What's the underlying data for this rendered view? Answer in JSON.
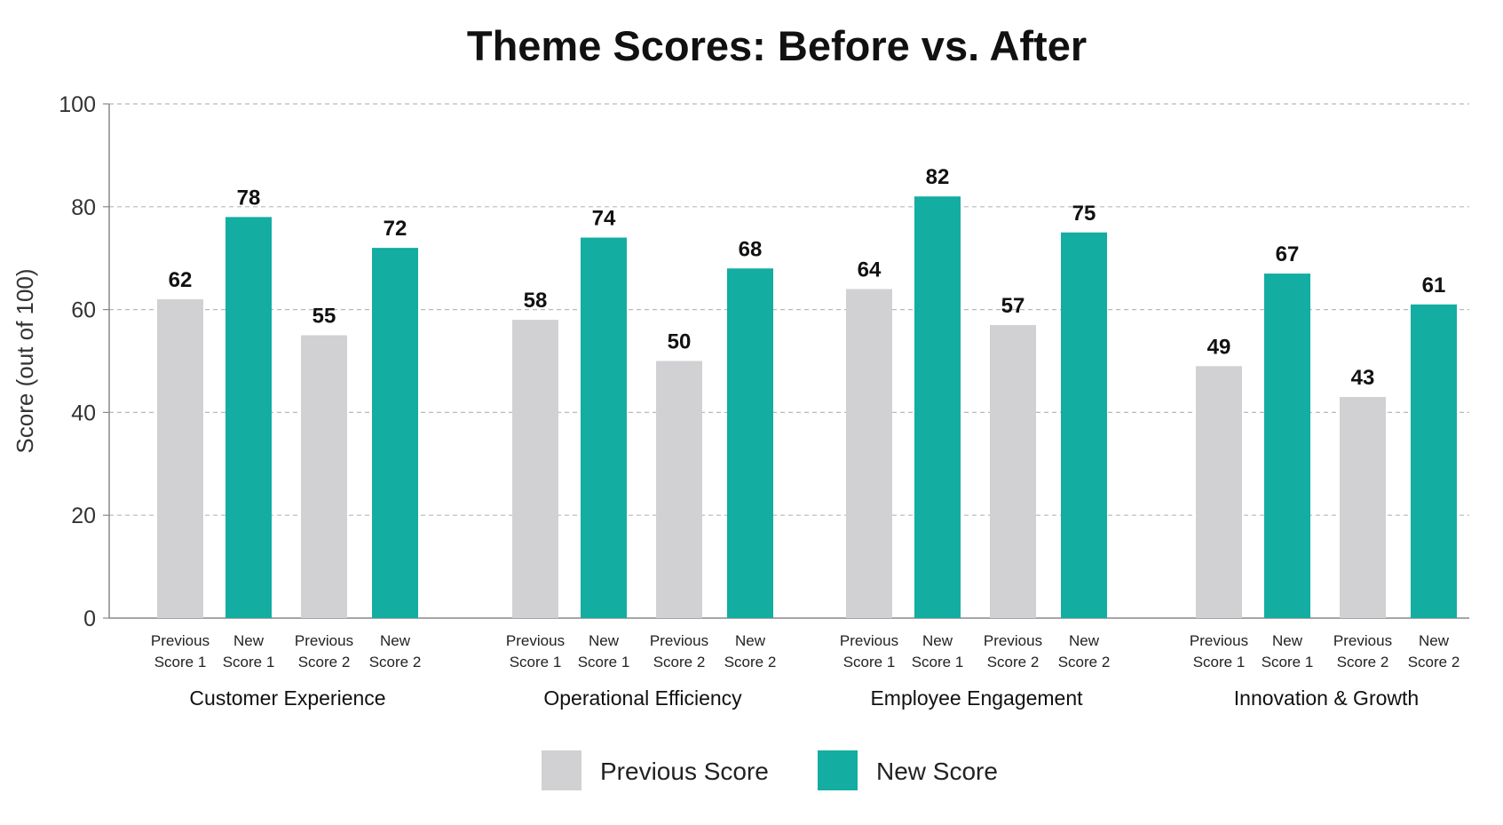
{
  "chart_data": {
    "type": "bar",
    "title": "Theme Scores: Before vs. After",
    "xlabel": "",
    "ylabel": "Score (out of 100)",
    "ylim": [
      0,
      100
    ],
    "yticks": [
      0,
      20,
      40,
      60,
      80,
      100
    ],
    "grid": true,
    "legend_position": "bottom-center",
    "colors": {
      "Previous Score": "#d1d1d3",
      "New Score": "#13ada1"
    },
    "groups": [
      {
        "name": "Customer Experience",
        "bars": [
          {
            "label": [
              "Previous",
              "Score 1"
            ],
            "series": "Previous Score",
            "value": 62
          },
          {
            "label": [
              "New",
              "Score 1"
            ],
            "series": "New Score",
            "value": 78
          },
          {
            "label": [
              "Previous",
              "Score 2"
            ],
            "series": "Previous Score",
            "value": 55
          },
          {
            "label": [
              "New",
              "Score 2"
            ],
            "series": "New Score",
            "value": 72
          }
        ]
      },
      {
        "name": "Operational Efficiency",
        "bars": [
          {
            "label": [
              "Previous",
              "Score 1"
            ],
            "series": "Previous Score",
            "value": 58
          },
          {
            "label": [
              "New",
              "Score 1"
            ],
            "series": "New Score",
            "value": 74
          },
          {
            "label": [
              "Previous",
              "Score 2"
            ],
            "series": "Previous Score",
            "value": 50
          },
          {
            "label": [
              "New",
              "Score 2"
            ],
            "series": "New Score",
            "value": 68
          }
        ]
      },
      {
        "name": "Employee Engagement",
        "bars": [
          {
            "label": [
              "Previous",
              "Score 1"
            ],
            "series": "Previous Score",
            "value": 64
          },
          {
            "label": [
              "New",
              "Score 1"
            ],
            "series": "New Score",
            "value": 82
          },
          {
            "label": [
              "Previous",
              "Score 2"
            ],
            "series": "Previous Score",
            "value": 57
          },
          {
            "label": [
              "New",
              "Score 2"
            ],
            "series": "New Score",
            "value": 75
          }
        ]
      },
      {
        "name": "Innovation & Growth",
        "bars": [
          {
            "label": [
              "Previous",
              "Score 1"
            ],
            "series": "Previous Score",
            "value": 49
          },
          {
            "label": [
              "New",
              "Score 1"
            ],
            "series": "New Score",
            "value": 67
          },
          {
            "label": [
              "Previous",
              "Score 2"
            ],
            "series": "Previous Score",
            "value": 43
          },
          {
            "label": [
              "New",
              "Score 2"
            ],
            "series": "New Score",
            "value": 61
          }
        ]
      }
    ],
    "legend": [
      "Previous Score",
      "New Score"
    ]
  }
}
